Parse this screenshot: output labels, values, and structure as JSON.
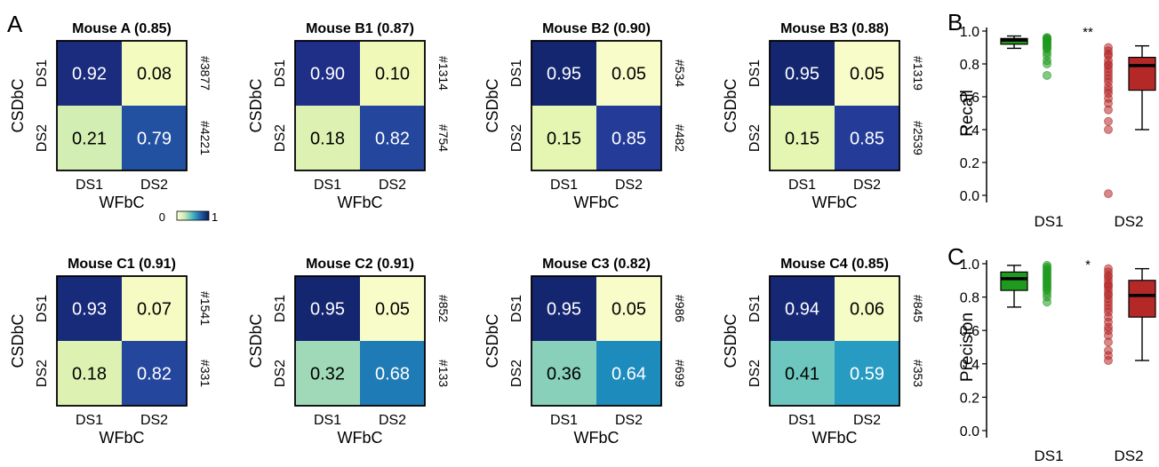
{
  "panel_labels": {
    "a": "A",
    "b": "B",
    "c": "C"
  },
  "colorbar": {
    "min_label": "0",
    "max_label": "1"
  },
  "chart_data": [
    {
      "type": "heatmap",
      "title": "Mouse A (0.85)",
      "ylabel": "CSDbC",
      "xlabel": "WFbC",
      "row_labels": [
        "DS1",
        "DS2"
      ],
      "col_labels": [
        "DS1",
        "DS2"
      ],
      "values": [
        [
          0.92,
          0.08
        ],
        [
          0.21,
          0.79
        ]
      ],
      "row_counts": [
        "#3877",
        "#4221"
      ]
    },
    {
      "type": "heatmap",
      "title": "Mouse B1 (0.87)",
      "ylabel": "CSDbC",
      "xlabel": "WFbC",
      "row_labels": [
        "DS1",
        "DS2"
      ],
      "col_labels": [
        "DS1",
        "DS2"
      ],
      "values": [
        [
          0.9,
          0.1
        ],
        [
          0.18,
          0.82
        ]
      ],
      "row_counts": [
        "#1314",
        "#754"
      ]
    },
    {
      "type": "heatmap",
      "title": "Mouse B2 (0.90)",
      "ylabel": "CSDbC",
      "xlabel": "WFbC",
      "row_labels": [
        "DS1",
        "DS2"
      ],
      "col_labels": [
        "DS1",
        "DS2"
      ],
      "values": [
        [
          0.95,
          0.05
        ],
        [
          0.15,
          0.85
        ]
      ],
      "row_counts": [
        "#534",
        "#482"
      ]
    },
    {
      "type": "heatmap",
      "title": "Mouse B3 (0.88)",
      "ylabel": "CSDbC",
      "xlabel": "WFbC",
      "row_labels": [
        "DS1",
        "DS2"
      ],
      "col_labels": [
        "DS1",
        "DS2"
      ],
      "values": [
        [
          0.95,
          0.05
        ],
        [
          0.15,
          0.85
        ]
      ],
      "row_counts": [
        "#1319",
        "#2539"
      ]
    },
    {
      "type": "heatmap",
      "title": "Mouse C1 (0.91)",
      "ylabel": "CSDbC",
      "xlabel": "WFbC",
      "row_labels": [
        "DS1",
        "DS2"
      ],
      "col_labels": [
        "DS1",
        "DS2"
      ],
      "values": [
        [
          0.93,
          0.07
        ],
        [
          0.18,
          0.82
        ]
      ],
      "row_counts": [
        "#1541",
        "#331"
      ]
    },
    {
      "type": "heatmap",
      "title": "Mouse C2 (0.91)",
      "ylabel": "CSDbC",
      "xlabel": "WFbC",
      "row_labels": [
        "DS1",
        "DS2"
      ],
      "col_labels": [
        "DS1",
        "DS2"
      ],
      "values": [
        [
          0.95,
          0.05
        ],
        [
          0.32,
          0.68
        ]
      ],
      "row_counts": [
        "#852",
        "#133"
      ]
    },
    {
      "type": "heatmap",
      "title": "Mouse C3 (0.82)",
      "ylabel": "CSDbC",
      "xlabel": "WFbC",
      "row_labels": [
        "DS1",
        "DS2"
      ],
      "col_labels": [
        "DS1",
        "DS2"
      ],
      "values": [
        [
          0.95,
          0.05
        ],
        [
          0.36,
          0.64
        ]
      ],
      "row_counts": [
        "#986",
        "#699"
      ]
    },
    {
      "type": "heatmap",
      "title": "Mouse C4 (0.85)",
      "ylabel": "CSDbC",
      "xlabel": "WFbC",
      "row_labels": [
        "DS1",
        "DS2"
      ],
      "col_labels": [
        "DS1",
        "DS2"
      ],
      "values": [
        [
          0.94,
          0.06
        ],
        [
          0.41,
          0.59
        ]
      ],
      "row_counts": [
        "#845",
        "#353"
      ]
    },
    {
      "type": "box",
      "ylabel": "Recall",
      "ylim": [
        0,
        1
      ],
      "yticks": [
        "0.0",
        "0.2",
        "0.4",
        "0.6",
        "0.8",
        "1.0"
      ],
      "categories": [
        "DS1",
        "DS2"
      ],
      "colors": {
        "DS1": "#1f9a1f",
        "DS2": "#b52828"
      },
      "significance": "**",
      "boxes": [
        {
          "name": "DS1",
          "q1": 0.92,
          "median": 0.945,
          "q3": 0.955,
          "whisker_low": 0.895,
          "whisker_high": 0.97
        },
        {
          "name": "DS2",
          "q1": 0.64,
          "median": 0.79,
          "q3": 0.84,
          "whisker_low": 0.4,
          "whisker_high": 0.91
        }
      ],
      "points": {
        "DS1": [
          0.96,
          0.96,
          0.95,
          0.95,
          0.95,
          0.94,
          0.93,
          0.93,
          0.92,
          0.92,
          0.91,
          0.9,
          0.9,
          0.89,
          0.87,
          0.85,
          0.82,
          0.8,
          0.73
        ],
        "DS2": [
          0.9,
          0.88,
          0.86,
          0.85,
          0.82,
          0.8,
          0.79,
          0.77,
          0.75,
          0.73,
          0.71,
          0.69,
          0.66,
          0.64,
          0.62,
          0.59,
          0.56,
          0.52,
          0.45,
          0.4,
          0.01
        ]
      }
    },
    {
      "type": "box",
      "ylabel": "Precision",
      "ylim": [
        0,
        1
      ],
      "yticks": [
        "0.0",
        "0.2",
        "0.4",
        "0.6",
        "0.8",
        "1.0"
      ],
      "categories": [
        "DS1",
        "DS2"
      ],
      "colors": {
        "DS1": "#1f9a1f",
        "DS2": "#b52828"
      },
      "significance": "*",
      "boxes": [
        {
          "name": "DS1",
          "q1": 0.84,
          "median": 0.91,
          "q3": 0.95,
          "whisker_low": 0.74,
          "whisker_high": 0.99
        },
        {
          "name": "DS2",
          "q1": 0.68,
          "median": 0.81,
          "q3": 0.9,
          "whisker_low": 0.42,
          "whisker_high": 0.97
        }
      ],
      "points": {
        "DS1": [
          0.99,
          0.98,
          0.97,
          0.96,
          0.95,
          0.94,
          0.93,
          0.92,
          0.91,
          0.9,
          0.89,
          0.88,
          0.87,
          0.86,
          0.85,
          0.84,
          0.82,
          0.8,
          0.77
        ],
        "DS2": [
          0.97,
          0.95,
          0.93,
          0.92,
          0.9,
          0.88,
          0.87,
          0.86,
          0.84,
          0.82,
          0.81,
          0.79,
          0.77,
          0.75,
          0.73,
          0.71,
          0.68,
          0.65,
          0.62,
          0.6,
          0.57,
          0.53,
          0.48,
          0.45,
          0.42
        ]
      }
    }
  ]
}
